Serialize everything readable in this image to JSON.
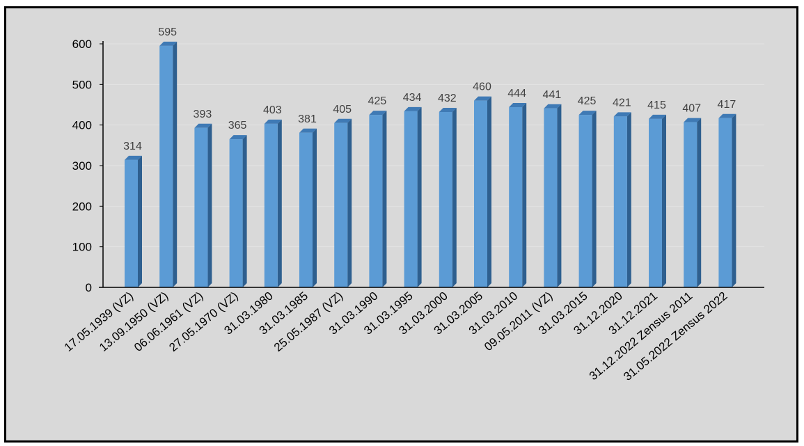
{
  "chart_data": {
    "type": "bar",
    "title": "",
    "xlabel": "",
    "ylabel": "",
    "ylim": [
      0,
      600
    ],
    "yticks": [
      0,
      100,
      200,
      300,
      400,
      500,
      600
    ],
    "grid": true,
    "legend": "none",
    "style": "3d-column",
    "categories": [
      "17.05.1939 (VZ)",
      "13.09.1950 (VZ)",
      "06.06.1961 (VZ)",
      "27.05.1970 (VZ)",
      "31.03.1980",
      "31.03.1985",
      "25.05.1987 (VZ)",
      "31.03.1990",
      "31.03.1995",
      "31.03.2000",
      "31.03.2005",
      "31.03.2010",
      "09.05.2011 (VZ)",
      "31.03.2015",
      "31.12.2020",
      "31.12.2021",
      "31.12.2022 Zensus 2011",
      "31.05.2022 Zensus 2022"
    ],
    "values": [
      314,
      595,
      393,
      365,
      403,
      381,
      405,
      425,
      434,
      432,
      460,
      444,
      441,
      425,
      421,
      415,
      407,
      417
    ],
    "colors": {
      "background": "#d9d9d9",
      "bar_front": "#5b9bd5",
      "bar_side": "#2e5f8f",
      "bar_top": "#3f7ab5",
      "axis": "#000000",
      "data_label": "#404040",
      "grid": "#e3e3e3"
    }
  }
}
